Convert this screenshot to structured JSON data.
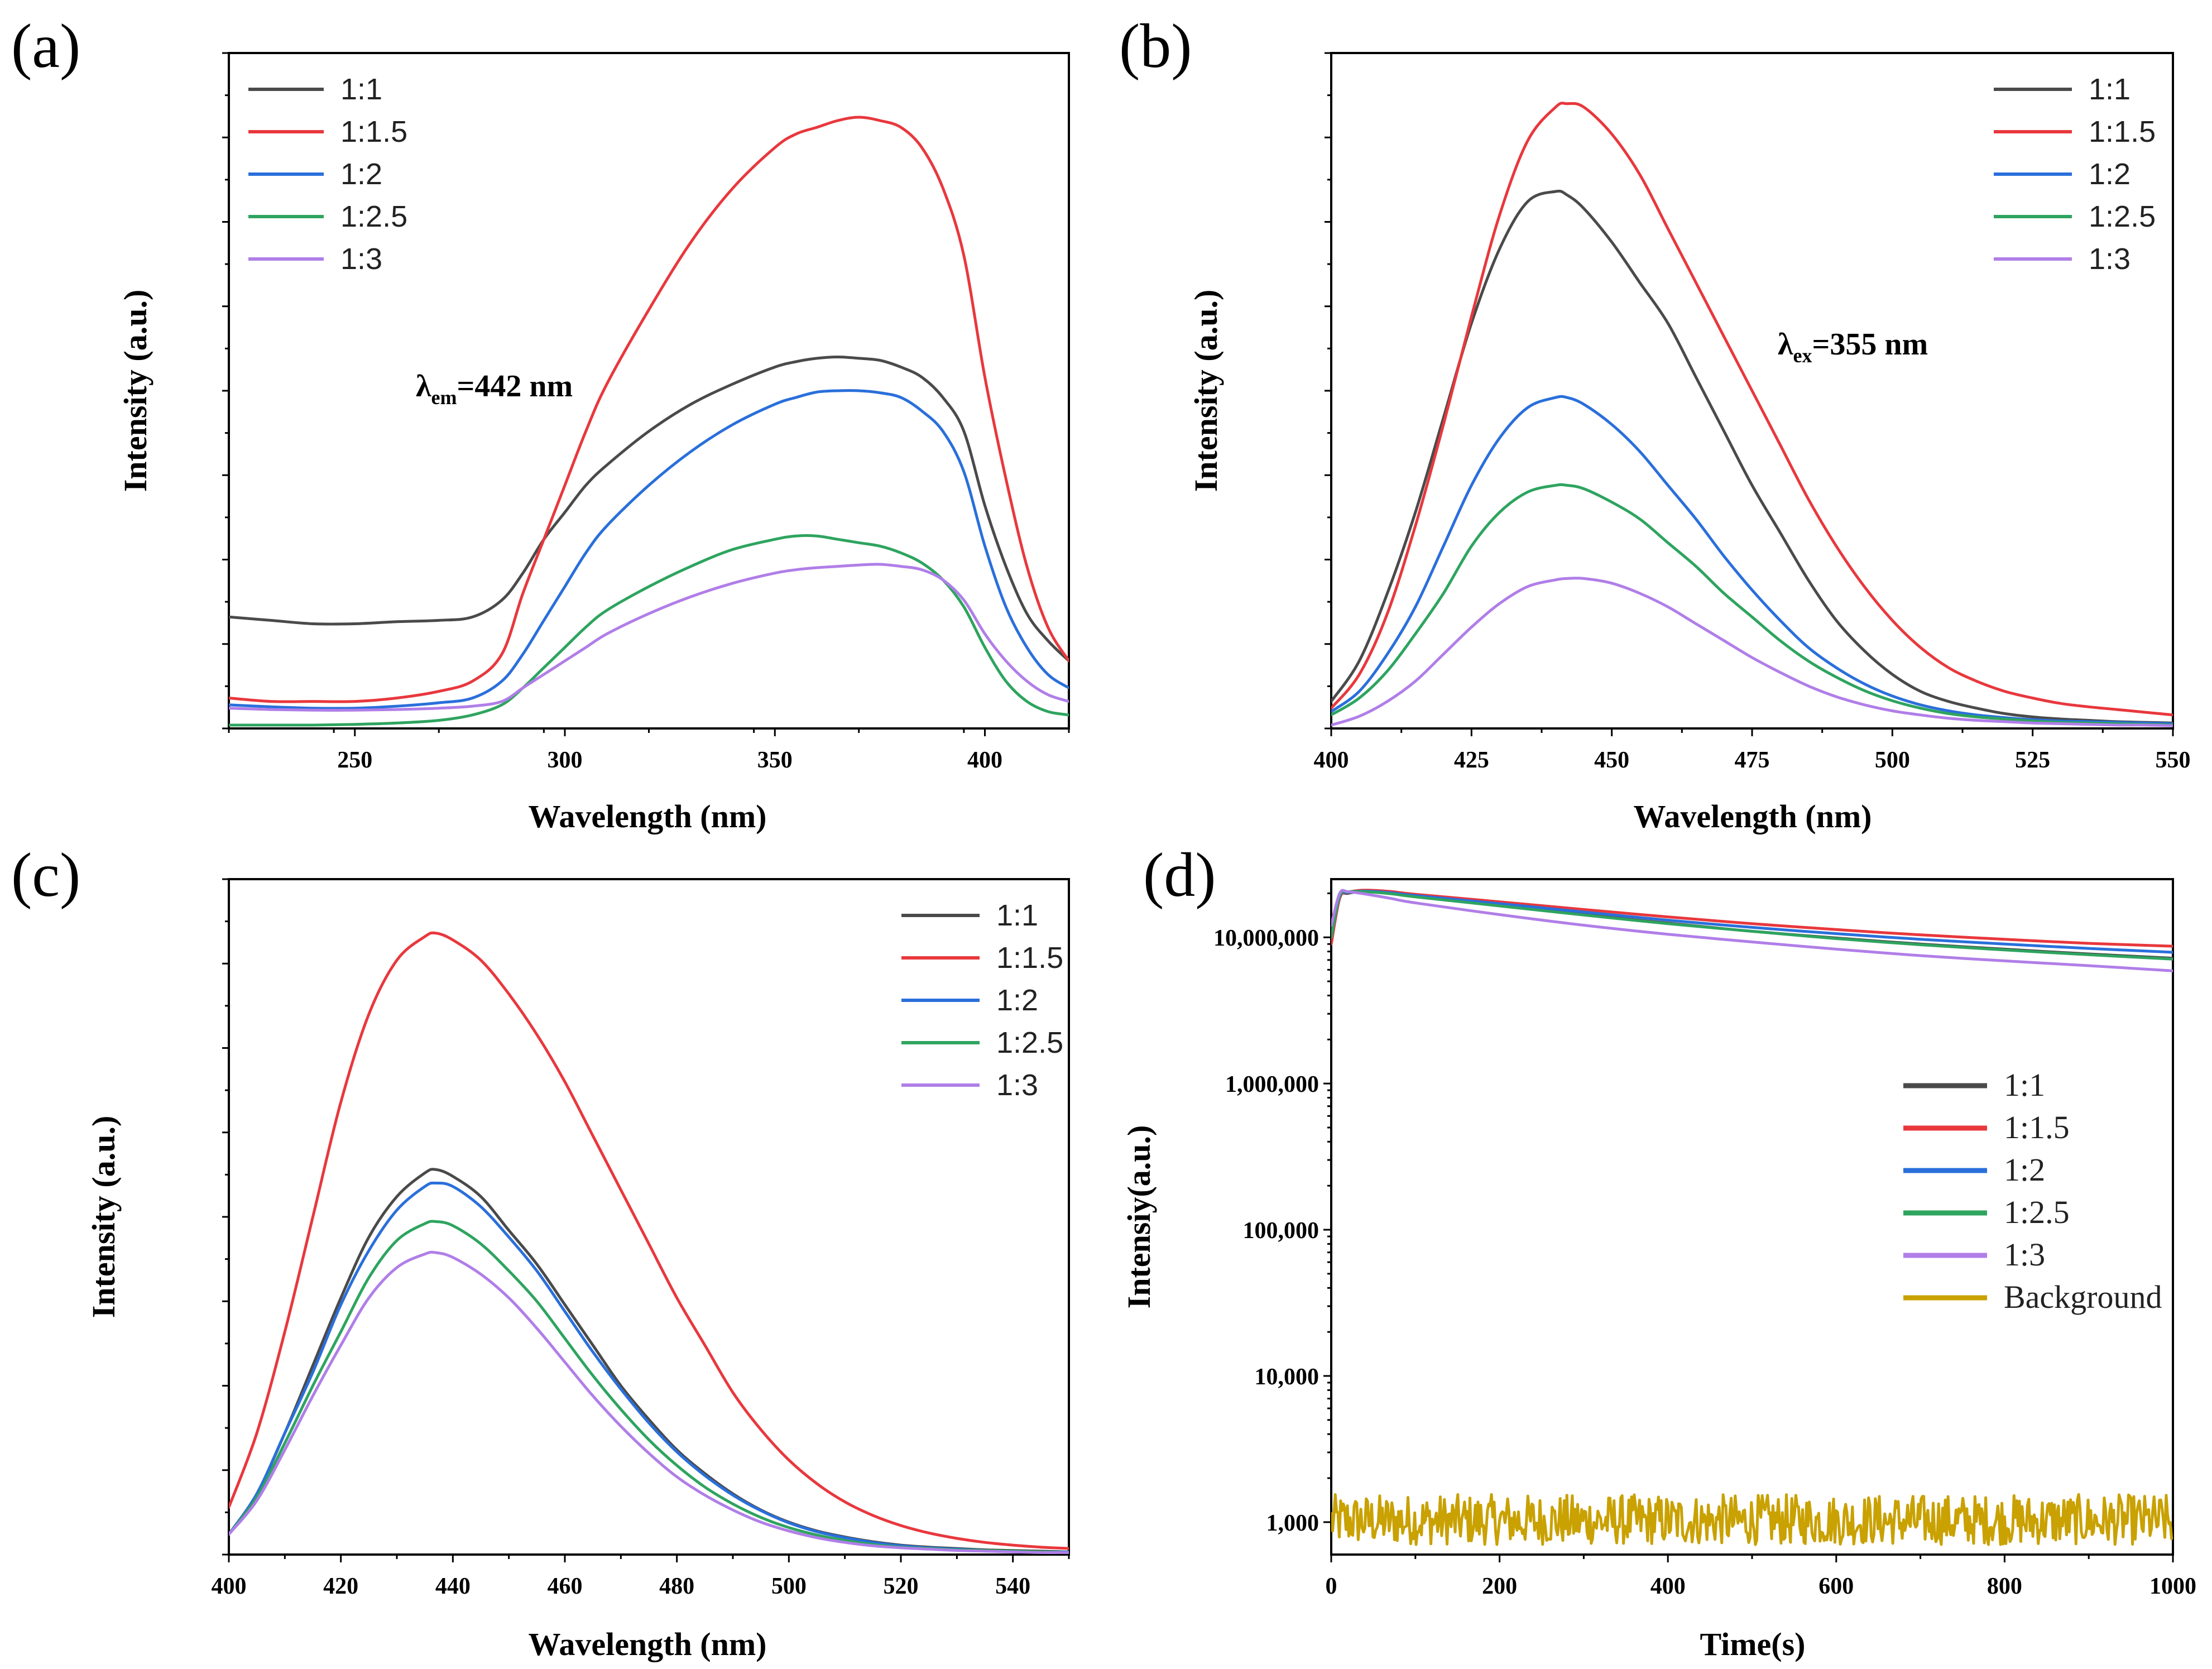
{
  "colors": {
    "1:1": "#4a4a4a",
    "1:1.5": "#e8383d",
    "1:2": "#2a6fdb",
    "1:2.5": "#2ea45f",
    "1:3": "#b07ee8",
    "Background": "#c9a100"
  },
  "chart_data": [
    {
      "panel": "(a)",
      "type": "line",
      "xlabel": "Wavelength (nm)",
      "ylabel": "Intensity (a.u.)",
      "xlim": [
        220,
        420
      ],
      "ylim": [
        0,
        1
      ],
      "xticks": [
        250,
        300,
        350,
        400
      ],
      "y_tick_labels": false,
      "annotation": {
        "lambda": "λ",
        "sub": "em",
        "text": "=442 nm"
      },
      "legend_position": "top-left",
      "x": [
        220,
        230,
        240,
        250,
        260,
        270,
        278,
        285,
        290,
        295,
        300,
        305,
        310,
        320,
        330,
        340,
        350,
        355,
        360,
        365,
        370,
        375,
        380,
        385,
        390,
        395,
        400,
        405,
        410,
        415,
        420
      ],
      "series": [
        {
          "name": "1:1",
          "values": [
            0.165,
            0.16,
            0.155,
            0.155,
            0.158,
            0.16,
            0.165,
            0.19,
            0.23,
            0.28,
            0.32,
            0.36,
            0.39,
            0.44,
            0.48,
            0.51,
            0.535,
            0.543,
            0.548,
            0.55,
            0.548,
            0.545,
            0.535,
            0.52,
            0.49,
            0.44,
            0.33,
            0.24,
            0.17,
            0.13,
            0.1
          ]
        },
        {
          "name": "1:1.5",
          "values": [
            0.045,
            0.04,
            0.04,
            0.04,
            0.045,
            0.055,
            0.07,
            0.11,
            0.2,
            0.28,
            0.36,
            0.44,
            0.51,
            0.62,
            0.72,
            0.8,
            0.86,
            0.88,
            0.89,
            0.9,
            0.905,
            0.9,
            0.89,
            0.86,
            0.8,
            0.7,
            0.52,
            0.37,
            0.24,
            0.15,
            0.1
          ]
        },
        {
          "name": "1:2",
          "values": [
            0.035,
            0.032,
            0.03,
            0.03,
            0.033,
            0.038,
            0.045,
            0.07,
            0.11,
            0.16,
            0.21,
            0.26,
            0.3,
            0.36,
            0.41,
            0.45,
            0.48,
            0.49,
            0.498,
            0.5,
            0.5,
            0.497,
            0.49,
            0.47,
            0.44,
            0.38,
            0.27,
            0.18,
            0.12,
            0.08,
            0.06
          ]
        },
        {
          "name": "1:2.5",
          "values": [
            0.005,
            0.005,
            0.005,
            0.006,
            0.008,
            0.012,
            0.02,
            0.035,
            0.06,
            0.09,
            0.12,
            0.15,
            0.175,
            0.21,
            0.24,
            0.265,
            0.28,
            0.285,
            0.285,
            0.28,
            0.275,
            0.27,
            0.26,
            0.245,
            0.22,
            0.18,
            0.12,
            0.07,
            0.04,
            0.025,
            0.02
          ]
        },
        {
          "name": "1:3",
          "values": [
            0.03,
            0.028,
            0.027,
            0.027,
            0.028,
            0.03,
            0.033,
            0.04,
            0.06,
            0.08,
            0.1,
            0.12,
            0.14,
            0.17,
            0.195,
            0.215,
            0.23,
            0.235,
            0.238,
            0.24,
            0.242,
            0.243,
            0.24,
            0.235,
            0.22,
            0.19,
            0.14,
            0.1,
            0.07,
            0.05,
            0.04
          ]
        }
      ]
    },
    {
      "panel": "(b)",
      "type": "line",
      "xlabel": "Wavelength (nm)",
      "ylabel": "Intensity (a.u.)",
      "xlim": [
        400,
        550
      ],
      "ylim": [
        0,
        1
      ],
      "xticks": [
        400,
        425,
        450,
        475,
        500,
        525,
        550
      ],
      "y_tick_labels": false,
      "annotation": {
        "lambda": "λ",
        "sub": "ex",
        "text": "=355 nm"
      },
      "legend_position": "top-right",
      "x": [
        400,
        405,
        410,
        415,
        420,
        425,
        430,
        435,
        440,
        442,
        445,
        450,
        455,
        460,
        465,
        470,
        475,
        480,
        485,
        490,
        495,
        500,
        505,
        510,
        515,
        520,
        525,
        530,
        535,
        540,
        545,
        550
      ],
      "series": [
        {
          "name": "1:1",
          "values": [
            0.04,
            0.1,
            0.2,
            0.32,
            0.46,
            0.6,
            0.71,
            0.78,
            0.795,
            0.79,
            0.77,
            0.72,
            0.66,
            0.6,
            0.52,
            0.44,
            0.36,
            0.29,
            0.22,
            0.16,
            0.115,
            0.08,
            0.055,
            0.04,
            0.03,
            0.022,
            0.017,
            0.014,
            0.012,
            0.01,
            0.009,
            0.008
          ]
        },
        {
          "name": "1:1.5",
          "values": [
            0.03,
            0.08,
            0.17,
            0.3,
            0.45,
            0.61,
            0.76,
            0.87,
            0.92,
            0.925,
            0.92,
            0.88,
            0.82,
            0.74,
            0.66,
            0.58,
            0.5,
            0.42,
            0.34,
            0.27,
            0.21,
            0.16,
            0.12,
            0.09,
            0.07,
            0.055,
            0.045,
            0.037,
            0.032,
            0.028,
            0.024,
            0.02
          ]
        },
        {
          "name": "1:2",
          "values": [
            0.025,
            0.055,
            0.11,
            0.18,
            0.27,
            0.36,
            0.43,
            0.475,
            0.49,
            0.49,
            0.48,
            0.45,
            0.41,
            0.36,
            0.31,
            0.255,
            0.205,
            0.16,
            0.12,
            0.09,
            0.066,
            0.048,
            0.035,
            0.026,
            0.02,
            0.016,
            0.013,
            0.011,
            0.01,
            0.009,
            0.008,
            0.007
          ]
        },
        {
          "name": "1:2.5",
          "values": [
            0.02,
            0.045,
            0.085,
            0.14,
            0.2,
            0.27,
            0.32,
            0.35,
            0.36,
            0.36,
            0.355,
            0.335,
            0.31,
            0.275,
            0.24,
            0.2,
            0.165,
            0.13,
            0.1,
            0.076,
            0.056,
            0.041,
            0.03,
            0.022,
            0.017,
            0.014,
            0.011,
            0.009,
            0.008,
            0.007,
            0.006,
            0.005
          ]
        },
        {
          "name": "1:3",
          "values": [
            0.005,
            0.018,
            0.04,
            0.07,
            0.11,
            0.15,
            0.185,
            0.21,
            0.22,
            0.222,
            0.222,
            0.215,
            0.2,
            0.18,
            0.155,
            0.13,
            0.105,
            0.083,
            0.063,
            0.047,
            0.035,
            0.026,
            0.02,
            0.015,
            0.012,
            0.01,
            0.008,
            0.007,
            0.006,
            0.005,
            0.005,
            0.004
          ]
        }
      ]
    },
    {
      "panel": "(c)",
      "type": "line",
      "xlabel": "Wavelength (nm)",
      "ylabel": "Intensity (a.u.)",
      "xlim": [
        400,
        550
      ],
      "ylim": [
        0,
        1
      ],
      "xticks": [
        400,
        420,
        440,
        460,
        480,
        500,
        520,
        540
      ],
      "y_tick_labels": false,
      "legend_position": "top-right",
      "x": [
        400,
        405,
        410,
        415,
        420,
        425,
        430,
        435,
        437,
        440,
        445,
        450,
        455,
        460,
        465,
        470,
        475,
        480,
        485,
        490,
        495,
        500,
        505,
        510,
        515,
        520,
        525,
        530,
        535,
        540,
        545,
        550
      ],
      "series": [
        {
          "name": "1:1",
          "values": [
            0.03,
            0.09,
            0.18,
            0.28,
            0.38,
            0.47,
            0.53,
            0.565,
            0.57,
            0.56,
            0.53,
            0.48,
            0.43,
            0.37,
            0.31,
            0.25,
            0.2,
            0.155,
            0.12,
            0.09,
            0.066,
            0.048,
            0.035,
            0.026,
            0.019,
            0.014,
            0.011,
            0.009,
            0.007,
            0.006,
            0.005,
            0.004
          ]
        },
        {
          "name": "1:1.5",
          "values": [
            0.07,
            0.18,
            0.33,
            0.5,
            0.67,
            0.8,
            0.88,
            0.915,
            0.92,
            0.91,
            0.88,
            0.83,
            0.77,
            0.7,
            0.62,
            0.54,
            0.46,
            0.38,
            0.31,
            0.24,
            0.185,
            0.14,
            0.105,
            0.078,
            0.058,
            0.043,
            0.032,
            0.024,
            0.018,
            0.014,
            0.011,
            0.009
          ]
        },
        {
          "name": "1:2",
          "values": [
            0.03,
            0.09,
            0.18,
            0.27,
            0.37,
            0.45,
            0.51,
            0.545,
            0.55,
            0.545,
            0.515,
            0.47,
            0.42,
            0.36,
            0.3,
            0.245,
            0.195,
            0.152,
            0.117,
            0.088,
            0.065,
            0.047,
            0.034,
            0.025,
            0.018,
            0.013,
            0.01,
            0.008,
            0.006,
            0.005,
            0.004,
            0.004
          ]
        },
        {
          "name": "1:2.5",
          "values": [
            0.03,
            0.085,
            0.165,
            0.25,
            0.33,
            0.41,
            0.465,
            0.49,
            0.493,
            0.487,
            0.46,
            0.42,
            0.375,
            0.32,
            0.265,
            0.215,
            0.17,
            0.132,
            0.1,
            0.075,
            0.055,
            0.04,
            0.029,
            0.021,
            0.015,
            0.011,
            0.009,
            0.007,
            0.006,
            0.005,
            0.004,
            0.003
          ]
        },
        {
          "name": "1:3",
          "values": [
            0.03,
            0.08,
            0.155,
            0.235,
            0.31,
            0.38,
            0.425,
            0.445,
            0.447,
            0.44,
            0.415,
            0.38,
            0.335,
            0.285,
            0.235,
            0.19,
            0.15,
            0.115,
            0.088,
            0.066,
            0.048,
            0.035,
            0.025,
            0.018,
            0.013,
            0.01,
            0.008,
            0.006,
            0.005,
            0.004,
            0.003,
            0.003
          ]
        }
      ]
    },
    {
      "panel": "(d)",
      "type": "line",
      "xlabel": "Time(s)",
      "ylabel": "Intensiy(a.u.)",
      "xlim": [
        0,
        1000
      ],
      "ylim": [
        600,
        25000000
      ],
      "yscale": "log",
      "xticks": [
        0,
        200,
        400,
        600,
        800,
        1000
      ],
      "yticks": [
        1000,
        10000,
        100000,
        1000000,
        10000000
      ],
      "ytick_labels": [
        "1,000",
        "10,000",
        "100,000",
        "1,000,000",
        "10,000,000"
      ],
      "legend_position": "center-right",
      "x": [
        0,
        10,
        20,
        40,
        70,
        100,
        200,
        300,
        400,
        500,
        600,
        700,
        800,
        900,
        1000
      ],
      "series": [
        {
          "name": "1:1",
          "values": [
            9000000,
            18500000,
            20000000,
            20500000,
            20000000,
            19000000,
            16500000,
            14300000,
            12500000,
            11000000,
            9900000,
            9000000,
            8300000,
            7700000,
            7200000
          ]
        },
        {
          "name": "1:1.5",
          "values": [
            9000000,
            18500000,
            20300000,
            21000000,
            20600000,
            19700000,
            17500000,
            15500000,
            13800000,
            12400000,
            11300000,
            10400000,
            9700000,
            9100000,
            8700000
          ]
        },
        {
          "name": "1:2",
          "values": [
            10000000,
            19000000,
            20300000,
            20700000,
            20200000,
            19300000,
            17000000,
            14900000,
            13100000,
            11700000,
            10600000,
            9700000,
            9000000,
            8400000,
            7900000
          ]
        },
        {
          "name": "1:2.5",
          "values": [
            10000000,
            19200000,
            20500000,
            20500000,
            19900000,
            18900000,
            16400000,
            14200000,
            12400000,
            11000000,
            9800000,
            8900000,
            8200000,
            7600000,
            7100000
          ]
        },
        {
          "name": "1:3",
          "values": [
            12000000,
            20000000,
            20500000,
            19800000,
            18500000,
            17200000,
            14300000,
            12100000,
            10500000,
            9300000,
            8300000,
            7500000,
            6900000,
            6400000,
            5900000
          ]
        },
        {
          "name": "Background",
          "mean": 1000,
          "noise_range": [
            700,
            1550
          ]
        }
      ]
    }
  ]
}
